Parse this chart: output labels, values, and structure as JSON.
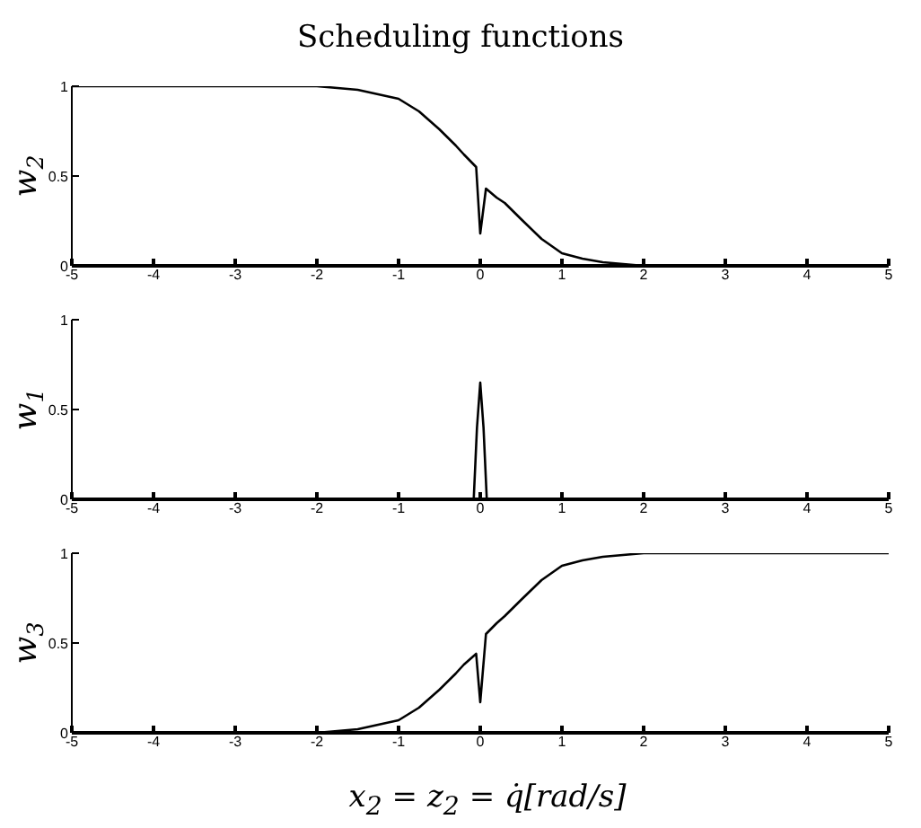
{
  "chart_data": [
    {
      "type": "line",
      "title": "Scheduling functions",
      "ylabel": "w$_{2}$",
      "xlim": [
        -5,
        5
      ],
      "xticks": [
        -5,
        -4,
        -3,
        -2,
        -1,
        0,
        1,
        2,
        3,
        4,
        5
      ],
      "ylim": [
        0,
        1
      ],
      "yticks": [
        0,
        0.5,
        1
      ],
      "marker": "none",
      "line_style": "solid",
      "grid": false,
      "legend": false,
      "series": [
        {
          "color": "#000000",
          "x": [
            -5,
            -3,
            -2,
            -1.5,
            -1,
            -0.75,
            -0.5,
            -0.3,
            -0.2,
            -0.05,
            0,
            0.07,
            0.2,
            0.3,
            0.5,
            0.75,
            1,
            1.25,
            1.5,
            2,
            3,
            5
          ],
          "values": [
            1,
            1,
            1,
            0.98,
            0.93,
            0.86,
            0.76,
            0.67,
            0.62,
            0.55,
            0.18,
            0.43,
            0.38,
            0.35,
            0.26,
            0.15,
            0.07,
            0.04,
            0.02,
            0,
            0,
            0
          ]
        }
      ]
    },
    {
      "type": "line",
      "ylabel": "w$_{1}$",
      "xlim": [
        -5,
        5
      ],
      "xticks": [
        -5,
        -4,
        -3,
        -2,
        -1,
        0,
        1,
        2,
        3,
        4,
        5
      ],
      "ylim": [
        0,
        1
      ],
      "yticks": [
        0,
        0.5,
        1
      ],
      "marker": "none",
      "line_style": "solid",
      "grid": false,
      "legend": false,
      "series": [
        {
          "color": "#000000",
          "x": [
            -5,
            -0.08,
            -0.04,
            0,
            0.04,
            0.08,
            5
          ],
          "values": [
            0,
            0,
            0.4,
            0.65,
            0.4,
            0,
            0
          ]
        }
      ]
    },
    {
      "type": "line",
      "xlabel": "x$_{2}$ = z$_{2}$ = q̇[rad/s]",
      "ylabel": "w$_{3}$",
      "xlim": [
        -5,
        5
      ],
      "xticks": [
        -5,
        -4,
        -3,
        -2,
        -1,
        0,
        1,
        2,
        3,
        4,
        5
      ],
      "ylim": [
        0,
        1
      ],
      "yticks": [
        0,
        0.5,
        1
      ],
      "marker": "none",
      "line_style": "solid",
      "grid": false,
      "legend": false,
      "series": [
        {
          "color": "#000000",
          "x": [
            -5,
            -3,
            -2,
            -1.5,
            -1,
            -0.75,
            -0.5,
            -0.3,
            -0.2,
            -0.05,
            0,
            0.07,
            0.2,
            0.3,
            0.5,
            0.75,
            1,
            1.25,
            1.5,
            2,
            3,
            5
          ],
          "values": [
            0,
            0,
            0,
            0.02,
            0.07,
            0.14,
            0.24,
            0.33,
            0.38,
            0.44,
            0.17,
            0.55,
            0.61,
            0.65,
            0.74,
            0.85,
            0.93,
            0.96,
            0.98,
            1,
            1,
            1
          ]
        }
      ]
    }
  ]
}
